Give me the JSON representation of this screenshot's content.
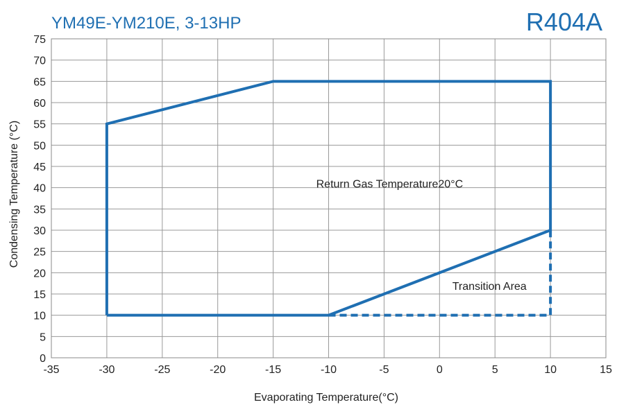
{
  "chart_data": {
    "type": "line",
    "title": "YM49E-YM210E, 3-13HP",
    "badge": "R404A",
    "xlabel": "Evaporating Temperature(°C)",
    "ylabel": "Condensing Temperature (°C)",
    "xlim": [
      -35,
      15
    ],
    "ylim": [
      0,
      75
    ],
    "x_ticks": [
      -35,
      -30,
      -25,
      -20,
      -15,
      -10,
      -5,
      0,
      5,
      10,
      15
    ],
    "y_ticks": [
      0,
      5,
      10,
      15,
      20,
      25,
      30,
      35,
      40,
      45,
      50,
      55,
      60,
      65,
      70,
      75
    ],
    "x_tick_labels": [
      "-35",
      "-30",
      "-25",
      "-20",
      "-15",
      "-10",
      "-5",
      "0",
      "5",
      "10",
      "15"
    ],
    "y_tick_labels": [
      "0",
      "5",
      "10",
      "15",
      "20",
      "25",
      "30",
      "35",
      "40",
      "45",
      "50",
      "55",
      "60",
      "65",
      "70",
      "75"
    ],
    "grid": true,
    "series": [
      {
        "style": "solid",
        "x": [
          -30,
          -30,
          -15,
          10,
          10,
          -10,
          -30
        ],
        "y": [
          10,
          55,
          65,
          65,
          30,
          10,
          10
        ]
      },
      {
        "style": "dashed",
        "x": [
          -10,
          10,
          10
        ],
        "y": [
          10,
          10,
          30
        ]
      }
    ],
    "annotations": [
      {
        "text": "Return Gas Temperature20°C",
        "x": -4.5,
        "y": 40
      },
      {
        "text": "Transition Area",
        "x": 4.5,
        "y": 16
      }
    ],
    "colors": {
      "line": "#1f6fb2",
      "title": "#1f6fb2",
      "grid": "#999999",
      "text": "#222222"
    }
  }
}
